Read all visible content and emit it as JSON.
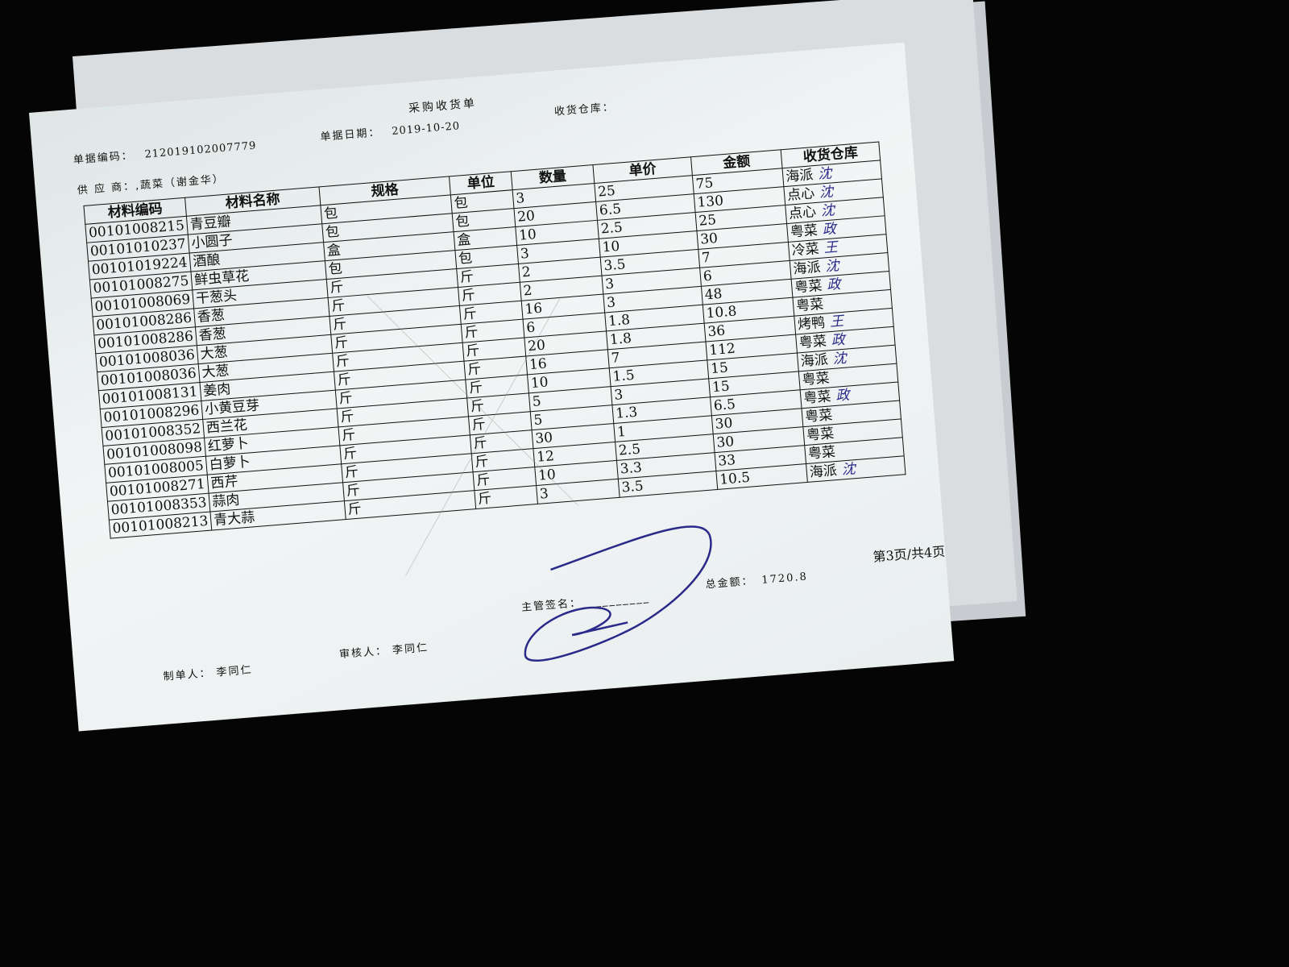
{
  "document": {
    "title": "采购收货单",
    "doc_no_label": "单据编码：",
    "doc_no": "212019102007779",
    "date_label": "单据日期：",
    "date": "2019-10-20",
    "warehouse_label": "收货仓库：",
    "supplier_label": "供 应 商：",
    "supplier": ",蔬菜（谢金华）",
    "columns": [
      "材料编码",
      "材料名称",
      "规格",
      "单位",
      "数量",
      "单价",
      "金额",
      "收货仓库"
    ],
    "rows": [
      {
        "code": "00101008215",
        "name": "青豆瓣",
        "spec": "包",
        "unit": "包",
        "qty": "3",
        "price": "25",
        "amount": "75",
        "warehouse": "海派",
        "mark": "沈"
      },
      {
        "code": "00101010237",
        "name": "小圆子",
        "spec": "包",
        "unit": "包",
        "qty": "20",
        "price": "6.5",
        "amount": "130",
        "warehouse": "点心",
        "mark": "沈"
      },
      {
        "code": "00101019224",
        "name": "酒酿",
        "spec": "盒",
        "unit": "盒",
        "qty": "10",
        "price": "2.5",
        "amount": "25",
        "warehouse": "点心",
        "mark": "沈"
      },
      {
        "code": "00101008275",
        "name": "鲜虫草花",
        "spec": "包",
        "unit": "包",
        "qty": "3",
        "price": "10",
        "amount": "30",
        "warehouse": "粤菜",
        "mark": "政"
      },
      {
        "code": "00101008069",
        "name": "干葱头",
        "spec": "斤",
        "unit": "斤",
        "qty": "2",
        "price": "3.5",
        "amount": "7",
        "warehouse": "冷菜",
        "mark": "王"
      },
      {
        "code": "00101008286",
        "name": "香葱",
        "spec": "斤",
        "unit": "斤",
        "qty": "2",
        "price": "3",
        "amount": "6",
        "warehouse": "海派",
        "mark": "沈"
      },
      {
        "code": "00101008286",
        "name": "香葱",
        "spec": "斤",
        "unit": "斤",
        "qty": "16",
        "price": "3",
        "amount": "48",
        "warehouse": "粤菜",
        "mark": "政"
      },
      {
        "code": "00101008036",
        "name": "大葱",
        "spec": "斤",
        "unit": "斤",
        "qty": "6",
        "price": "1.8",
        "amount": "10.8",
        "warehouse": "粤菜",
        "mark": ""
      },
      {
        "code": "00101008036",
        "name": "大葱",
        "spec": "斤",
        "unit": "斤",
        "qty": "20",
        "price": "1.8",
        "amount": "36",
        "warehouse": "烤鸭",
        "mark": "王"
      },
      {
        "code": "00101008131",
        "name": "姜肉",
        "spec": "斤",
        "unit": "斤",
        "qty": "16",
        "price": "7",
        "amount": "112",
        "warehouse": "粤菜",
        "mark": "政"
      },
      {
        "code": "00101008296",
        "name": "小黄豆芽",
        "spec": "斤",
        "unit": "斤",
        "qty": "10",
        "price": "1.5",
        "amount": "15",
        "warehouse": "海派",
        "mark": "沈"
      },
      {
        "code": "00101008352",
        "name": "西兰花",
        "spec": "斤",
        "unit": "斤",
        "qty": "5",
        "price": "3",
        "amount": "15",
        "warehouse": "粤菜",
        "mark": ""
      },
      {
        "code": "00101008098",
        "name": "红萝卜",
        "spec": "斤",
        "unit": "斤",
        "qty": "5",
        "price": "1.3",
        "amount": "6.5",
        "warehouse": "粤菜",
        "mark": "政"
      },
      {
        "code": "00101008005",
        "name": "白萝卜",
        "spec": "斤",
        "unit": "斤",
        "qty": "30",
        "price": "1",
        "amount": "30",
        "warehouse": "粤菜",
        "mark": ""
      },
      {
        "code": "00101008271",
        "name": "西芹",
        "spec": "斤",
        "unit": "斤",
        "qty": "12",
        "price": "2.5",
        "amount": "30",
        "warehouse": "粤菜",
        "mark": ""
      },
      {
        "code": "00101008353",
        "name": "蒜肉",
        "spec": "斤",
        "unit": "斤",
        "qty": "10",
        "price": "3.3",
        "amount": "33",
        "warehouse": "粤菜",
        "mark": ""
      },
      {
        "code": "00101008213",
        "name": "青大蒜",
        "spec": "斤",
        "unit": "斤",
        "qty": "3",
        "price": "3.5",
        "amount": "10.5",
        "warehouse": "海派",
        "mark": "沈"
      }
    ],
    "supervisor_label": "主管签名：",
    "total_label": "总金额：",
    "total": "1720.8",
    "page": "第3页/共4页",
    "maker_label": "制单人：",
    "maker": "李同仁",
    "reviewer_label": "审核人：",
    "reviewer": "李同仁"
  },
  "colors": {
    "background": "#050505",
    "paper": "#eef2f2",
    "ink": "#111111",
    "pen": "#2a2a8a"
  }
}
